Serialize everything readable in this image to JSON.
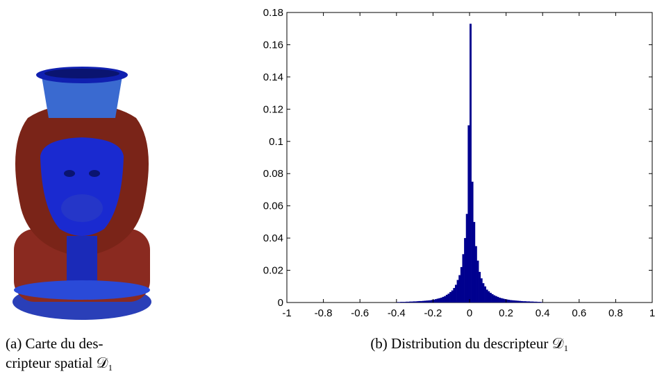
{
  "figure": {
    "caption_a": [
      "(a) Carte du des-",
      "cripteur spatial 𝒟₁"
    ],
    "caption_b": "(b) Distribution du descripteur 𝒟₁"
  },
  "chart_data": {
    "type": "histogram",
    "color": "#00008f",
    "grid": false,
    "xlim": [
      -1,
      1
    ],
    "ylim": [
      0,
      0.18
    ],
    "xticks": [
      -1,
      -0.8,
      -0.6,
      -0.4,
      -0.2,
      0,
      0.2,
      0.4,
      0.6,
      0.8,
      1
    ],
    "yticks": [
      0,
      0.02,
      0.04,
      0.06,
      0.08,
      0.1,
      0.12,
      0.14,
      0.16,
      0.18
    ],
    "bins": [
      -0.4,
      -0.39,
      -0.38,
      -0.37,
      -0.36,
      -0.35,
      -0.34,
      -0.33,
      -0.32,
      -0.31,
      -0.3,
      -0.29,
      -0.28,
      -0.27,
      -0.26,
      -0.25,
      -0.24,
      -0.23,
      -0.22,
      -0.21,
      -0.2,
      -0.19,
      -0.18,
      -0.17,
      -0.16,
      -0.15,
      -0.14,
      -0.13,
      -0.12,
      -0.11,
      -0.1,
      -0.09,
      -0.08,
      -0.07,
      -0.06,
      -0.05,
      -0.04,
      -0.03,
      -0.02,
      -0.01,
      0,
      0.01,
      0.02,
      0.03,
      0.04,
      0.05,
      0.06,
      0.07,
      0.08,
      0.09,
      0.1,
      0.11,
      0.12,
      0.13,
      0.14,
      0.15,
      0.16,
      0.17,
      0.18,
      0.19,
      0.2,
      0.21,
      0.22,
      0.23,
      0.24,
      0.25,
      0.26,
      0.27,
      0.28,
      0.29,
      0.3,
      0.31,
      0.32,
      0.33,
      0.34,
      0.35,
      0.36,
      0.37,
      0.38,
      0.39,
      0.4
    ],
    "counts": [
      0.0003,
      0.0003,
      0.0004,
      0.0004,
      0.0004,
      0.0005,
      0.0005,
      0.0006,
      0.0006,
      0.0007,
      0.0007,
      0.0008,
      0.0009,
      0.0009,
      0.001,
      0.0011,
      0.0012,
      0.0013,
      0.0014,
      0.0016,
      0.0018,
      0.0021,
      0.0024,
      0.0027,
      0.003,
      0.0035,
      0.004,
      0.0048,
      0.0055,
      0.0065,
      0.0075,
      0.009,
      0.011,
      0.014,
      0.017,
      0.022,
      0.03,
      0.04,
      0.055,
      0.11,
      0.173,
      0.075,
      0.05,
      0.035,
      0.026,
      0.019,
      0.015,
      0.012,
      0.01,
      0.008,
      0.007,
      0.006,
      0.0052,
      0.0045,
      0.004,
      0.0035,
      0.003,
      0.0027,
      0.0024,
      0.0021,
      0.0019,
      0.0017,
      0.0015,
      0.0014,
      0.0013,
      0.0012,
      0.0011,
      0.001,
      0.0009,
      0.0008,
      0.0008,
      0.0007,
      0.0007,
      0.0006,
      0.0006,
      0.0005,
      0.0005,
      0.0004,
      0.0004,
      0.0003
    ]
  }
}
